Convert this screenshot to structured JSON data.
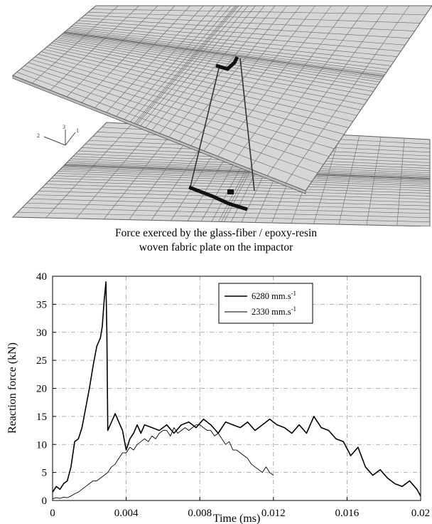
{
  "figure": {
    "axis_triad_labels": [
      "2",
      "3",
      "1"
    ],
    "caption_lines": [
      "Force exerced by the glass-fiber / epoxy-resin",
      "woven fabric plate on the impactor"
    ]
  },
  "chart_data": {
    "type": "line",
    "xlabel": "Time (ms)",
    "ylabel": "Reaction force (kN)",
    "xlim": [
      0,
      0.02
    ],
    "ylim": [
      0,
      40
    ],
    "x_ticks": [
      "0",
      "0.004",
      "0.008",
      "0.012",
      "0.016",
      "0.02"
    ],
    "x_tick_values": [
      0,
      0.004,
      0.008,
      0.012,
      0.016,
      0.02
    ],
    "y_ticks": [
      "0",
      "5",
      "10",
      "15",
      "20",
      "25",
      "30",
      "35",
      "40"
    ],
    "y_tick_values": [
      0,
      5,
      10,
      15,
      20,
      25,
      30,
      35,
      40
    ],
    "grid": "dash-dot",
    "legend_position": "top-right",
    "series": [
      {
        "name": "6280 mm.s",
        "name_superscript": "-1",
        "stroke": "heavy",
        "x": [
          0,
          0.0002,
          0.0004,
          0.0006,
          0.0008,
          0.001,
          0.0012,
          0.0014,
          0.0016,
          0.0018,
          0.002,
          0.0022,
          0.0024,
          0.0026,
          0.0027,
          0.0028,
          0.0029,
          0.00295,
          0.003,
          0.0032,
          0.0034,
          0.0036,
          0.0038,
          0.004,
          0.0042,
          0.0044,
          0.0046,
          0.0048,
          0.005,
          0.0054,
          0.0058,
          0.0062,
          0.0066,
          0.007,
          0.0074,
          0.0078,
          0.0082,
          0.0086,
          0.009,
          0.0094,
          0.0098,
          0.0102,
          0.0106,
          0.011,
          0.0114,
          0.0118,
          0.0122,
          0.0126,
          0.013,
          0.0134,
          0.0138,
          0.0142,
          0.0146,
          0.015,
          0.0154,
          0.0158,
          0.0162,
          0.0166,
          0.017,
          0.0174,
          0.0178,
          0.0182,
          0.0186,
          0.019,
          0.0194,
          0.0198,
          0.02
        ],
        "y": [
          1.5,
          2.5,
          2.0,
          3.0,
          3.5,
          6.0,
          10.5,
          11.0,
          13.0,
          16.5,
          20.0,
          24.0,
          27.5,
          29.0,
          31.0,
          35.5,
          39.0,
          30.0,
          12.5,
          14.0,
          15.5,
          14.0,
          12.5,
          9.0,
          11.0,
          12.0,
          13.5,
          12.0,
          13.5,
          13.0,
          12.5,
          13.5,
          12.0,
          13.5,
          14.0,
          13.0,
          14.5,
          13.5,
          12.0,
          14.0,
          13.5,
          13.0,
          14.0,
          12.5,
          13.5,
          14.5,
          13.5,
          13.0,
          12.0,
          13.5,
          12.0,
          15.0,
          13.0,
          12.5,
          11.0,
          10.5,
          8.0,
          9.5,
          6.0,
          4.5,
          5.5,
          4.0,
          3.0,
          2.5,
          3.5,
          2.0,
          0.8
        ]
      },
      {
        "name": "2330 mm.s",
        "name_superscript": "-1",
        "stroke": "light",
        "x": [
          0,
          0.0002,
          0.0004,
          0.0006,
          0.0008,
          0.001,
          0.0012,
          0.0014,
          0.0016,
          0.0018,
          0.002,
          0.0022,
          0.0024,
          0.0026,
          0.0028,
          0.003,
          0.0032,
          0.0034,
          0.0036,
          0.0038,
          0.004,
          0.0042,
          0.0044,
          0.0046,
          0.0048,
          0.005,
          0.0052,
          0.0054,
          0.0056,
          0.0058,
          0.006,
          0.0062,
          0.0064,
          0.0066,
          0.0068,
          0.007,
          0.0072,
          0.0074,
          0.0076,
          0.0078,
          0.008,
          0.0082,
          0.0084,
          0.0086,
          0.0088,
          0.009,
          0.0092,
          0.0094,
          0.0096,
          0.0098,
          0.01,
          0.0102,
          0.0104,
          0.0106,
          0.0108,
          0.011,
          0.0112,
          0.0114,
          0.0116,
          0.0118,
          0.012
        ],
        "y": [
          0.3,
          0.5,
          0.4,
          0.6,
          0.5,
          0.8,
          1.2,
          1.5,
          2.0,
          2.5,
          3.0,
          3.5,
          3.5,
          4.0,
          4.5,
          5.0,
          6.0,
          6.5,
          7.5,
          8.5,
          8.5,
          9.5,
          9.0,
          10.0,
          10.5,
          11.0,
          10.5,
          11.5,
          11.0,
          12.0,
          12.5,
          12.5,
          11.5,
          13.0,
          12.0,
          12.5,
          13.0,
          12.5,
          13.0,
          13.5,
          13.5,
          13.0,
          12.5,
          12.5,
          11.5,
          12.0,
          11.0,
          10.0,
          10.5,
          9.0,
          9.0,
          8.5,
          8.0,
          7.5,
          6.5,
          6.0,
          5.5,
          5.0,
          6.0,
          5.0,
          4.5
        ]
      }
    ]
  }
}
